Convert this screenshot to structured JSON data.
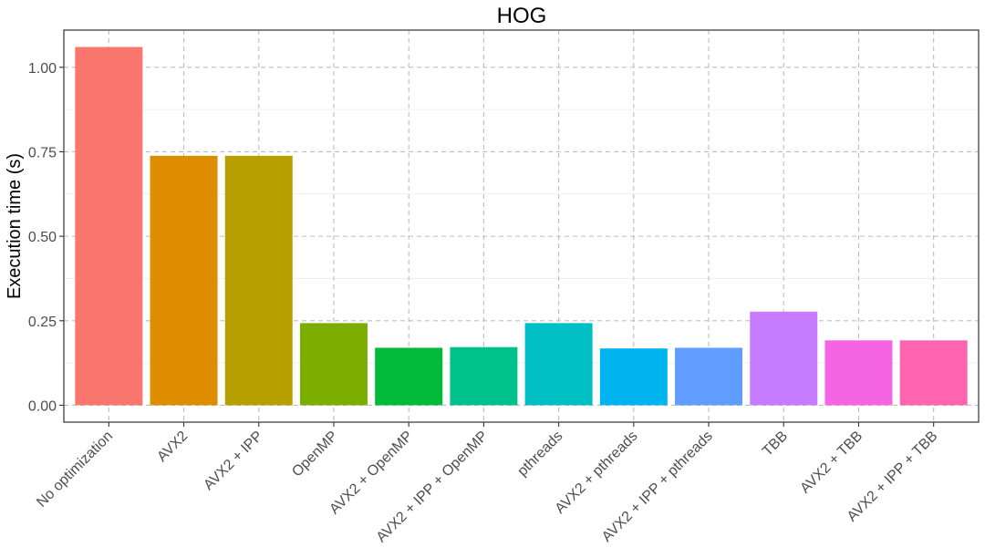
{
  "chart_data": {
    "type": "bar",
    "title": "HOG",
    "xlabel": "",
    "ylabel": "Execution time (s)",
    "ylim": [
      -0.05,
      1.11
    ],
    "yticks": [
      "0.00",
      "0.25",
      "0.50",
      "0.75",
      "1.00"
    ],
    "grid": true,
    "legend": "none",
    "categories": [
      "No optimization",
      "AVX2",
      "AVX2 + IPP",
      "OpenMP",
      "AVX2 + OpenMP",
      "AVX2 + IPP + OpenMP",
      "pthreads",
      "AVX2 + pthreads",
      "AVX2 + IPP + pthreads",
      "TBB",
      "AVX2 + TBB",
      "AVX2 + IPP + TBB"
    ],
    "values": [
      1.06,
      0.738,
      0.738,
      0.243,
      0.17,
      0.172,
      0.243,
      0.168,
      0.17,
      0.277,
      0.192,
      0.192
    ],
    "colors": [
      "#F8766D",
      "#DE8C00",
      "#B79F00",
      "#7CAE00",
      "#00BA38",
      "#00C08B",
      "#00BFC4",
      "#00B4F0",
      "#619CFF",
      "#C77CFF",
      "#F564E3",
      "#FF64B0"
    ]
  }
}
